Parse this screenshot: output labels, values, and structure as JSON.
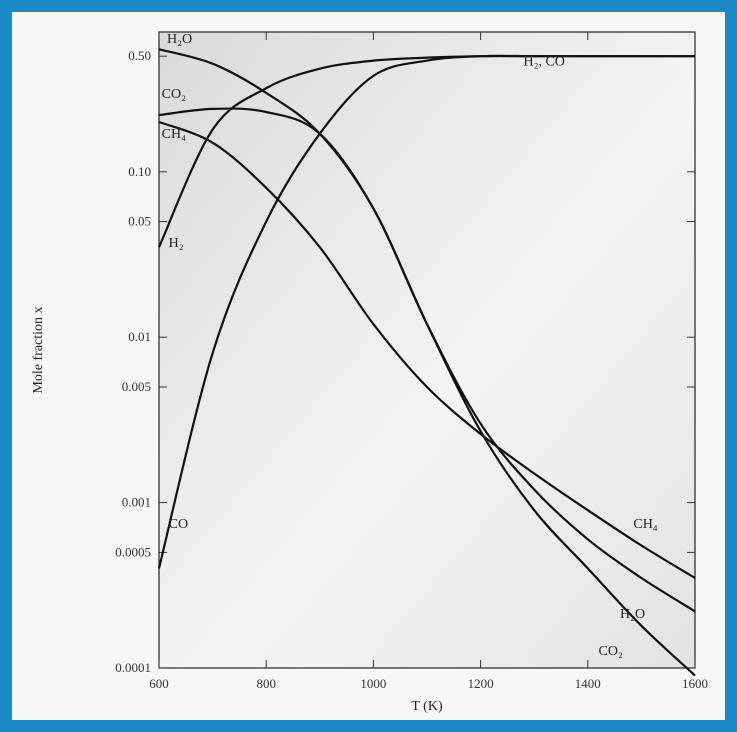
{
  "chart_data": {
    "type": "line",
    "title": "",
    "xlabel": "T (K)",
    "ylabel": "Mole fraction x",
    "xlim": [
      600,
      1600
    ],
    "ylim": [
      0.0001,
      0.7
    ],
    "yscale": "log",
    "grid": false,
    "x_ticks": [
      600,
      800,
      1000,
      1200,
      1400,
      1600
    ],
    "y_ticks": [
      {
        "value": 0.0001,
        "label": "0.0001"
      },
      {
        "value": 0.0005,
        "label": "0.0005"
      },
      {
        "value": 0.001,
        "label": "0.001"
      },
      {
        "value": 0.005,
        "label": "0.005"
      },
      {
        "value": 0.01,
        "label": "0.01"
      },
      {
        "value": 0.05,
        "label": "0.05"
      },
      {
        "value": 0.1,
        "label": "0.10"
      },
      {
        "value": 0.5,
        "label": "0.50"
      }
    ],
    "series": [
      {
        "name": "H2O",
        "x": [
          600,
          700,
          800,
          900,
          1000,
          1100,
          1200,
          1300,
          1400,
          1500,
          1600
        ],
        "y": [
          0.55,
          0.45,
          0.3,
          0.17,
          0.06,
          0.012,
          0.003,
          0.0012,
          0.0006,
          0.00035,
          0.00022
        ]
      },
      {
        "name": "CO2",
        "x": [
          600,
          700,
          800,
          900,
          1000,
          1100,
          1200,
          1300,
          1400,
          1500,
          1600
        ],
        "y": [
          0.22,
          0.24,
          0.23,
          0.17,
          0.06,
          0.012,
          0.0027,
          0.0009,
          0.0004,
          0.00018,
          9e-05
        ]
      },
      {
        "name": "CH4",
        "x": [
          600,
          700,
          800,
          900,
          1000,
          1100,
          1200,
          1300,
          1400,
          1500,
          1600
        ],
        "y": [
          0.2,
          0.15,
          0.08,
          0.035,
          0.012,
          0.005,
          0.0026,
          0.0015,
          0.0009,
          0.00055,
          0.00035
        ]
      },
      {
        "name": "H2",
        "x": [
          600,
          700,
          800,
          900,
          1000,
          1100,
          1200,
          1300,
          1400,
          1500,
          1600
        ],
        "y": [
          0.035,
          0.18,
          0.32,
          0.42,
          0.47,
          0.49,
          0.5,
          0.5,
          0.5,
          0.5,
          0.5
        ]
      },
      {
        "name": "CO",
        "x": [
          600,
          700,
          800,
          900,
          1000,
          1100,
          1200,
          1300,
          1400,
          1500,
          1600
        ],
        "y": [
          0.0004,
          0.008,
          0.05,
          0.17,
          0.38,
          0.47,
          0.5,
          0.5,
          0.5,
          0.5,
          0.5
        ]
      }
    ],
    "annotations": [
      {
        "text": "H₂O",
        "x": 615,
        "y": 0.6
      },
      {
        "text": "CO₂",
        "x": 605,
        "y": 0.28
      },
      {
        "text": "CH₄",
        "x": 605,
        "y": 0.16
      },
      {
        "text": "H₂",
        "x": 618,
        "y": 0.035
      },
      {
        "text": "CO",
        "x": 618,
        "y": 0.0007
      },
      {
        "text": "H₂, CO",
        "x": 1280,
        "y": 0.44
      },
      {
        "text": "CH₄",
        "x": 1485,
        "y": 0.0007
      },
      {
        "text": "H₂O",
        "x": 1460,
        "y": 0.0002
      },
      {
        "text": "CO₂",
        "x": 1420,
        "y": 0.00012
      }
    ]
  }
}
